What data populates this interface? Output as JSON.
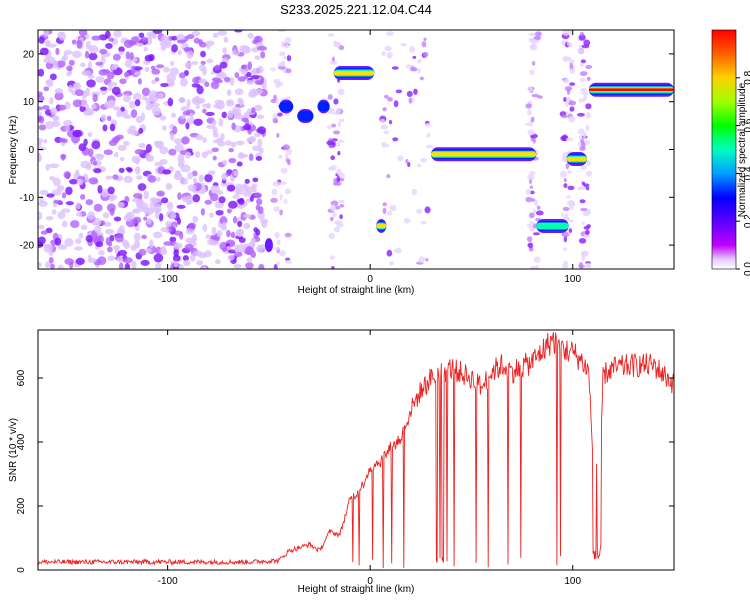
{
  "title": "S233.2025.221.12.04.C44",
  "chart_data": [
    {
      "type": "heatmap",
      "title": "S233.2025.221.12.04.C44",
      "xlabel": "Height of straight line (km)",
      "ylabel": "Frequency (Hz)",
      "xlim": [
        -164,
        150
      ],
      "ylim": [
        -25,
        25
      ],
      "xticks": [
        -100,
        0,
        100
      ],
      "yticks": [
        -20,
        -10,
        0,
        10,
        20
      ],
      "colorbar": {
        "label": "Normalized spectral amplitude",
        "range": [
          0,
          1
        ],
        "ticks": [
          "0.0",
          "0.2",
          "0.4",
          "0.6",
          "0.8"
        ],
        "colors": [
          "#ffffff",
          "#cc00ff",
          "#6600ff",
          "#0000ff",
          "#00aaff",
          "#00ffcc",
          "#00ff00",
          "#ccff00",
          "#ffcc00",
          "#ff6600",
          "#ff0000"
        ]
      },
      "noise_region_x": [
        -164,
        -52
      ],
      "features": [
        {
          "x": [
            -52,
            -48
          ],
          "freq": -20,
          "amp": 0.35
        },
        {
          "x": [
            -45,
            -38
          ],
          "freq": 9,
          "amp": 0.4
        },
        {
          "x": [
            -36,
            -28
          ],
          "freq": 7,
          "amp": 0.5
        },
        {
          "x": [
            -26,
            -20
          ],
          "freq": 9,
          "amp": 0.45
        },
        {
          "x": [
            -18,
            2
          ],
          "freq": 16,
          "amp": 0.75
        },
        {
          "x": [
            3,
            8
          ],
          "freq": -16,
          "amp": 0.8
        },
        {
          "x": [
            30,
            82
          ],
          "freq": -1,
          "amp": 0.85
        },
        {
          "x": [
            82,
            98
          ],
          "freq": -16,
          "amp": 0.7
        },
        {
          "x": [
            97,
            107
          ],
          "freq": -2,
          "amp": 0.9
        },
        {
          "x": [
            108,
            150
          ],
          "freq": 12.5,
          "amp": 1.0
        }
      ]
    },
    {
      "type": "line",
      "xlabel": "Height of straight line (km)",
      "ylabel": "SNR (10 * v/v)",
      "xlim": [
        -164,
        150
      ],
      "ylim": [
        0,
        750
      ],
      "xticks": [
        -100,
        0,
        100
      ],
      "yticks": [
        0,
        200,
        400,
        600
      ],
      "line_color": "#ee2222",
      "series": [
        {
          "name": "SNR",
          "x": [
            -164,
            -60,
            -45,
            -40,
            -30,
            -25,
            -20,
            -15,
            -10,
            -5,
            0,
            5,
            10,
            15,
            20,
            25,
            30,
            40,
            50,
            55,
            60,
            65,
            70,
            80,
            90,
            95,
            100,
            105,
            108,
            112,
            115,
            120,
            130,
            140,
            150
          ],
          "values": [
            25,
            25,
            30,
            60,
            80,
            60,
            120,
            110,
            220,
            250,
            320,
            340,
            380,
            410,
            500,
            560,
            600,
            630,
            600,
            570,
            620,
            640,
            620,
            650,
            720,
            690,
            680,
            650,
            620,
            50,
            610,
            630,
            640,
            640,
            580
          ]
        }
      ]
    }
  ]
}
